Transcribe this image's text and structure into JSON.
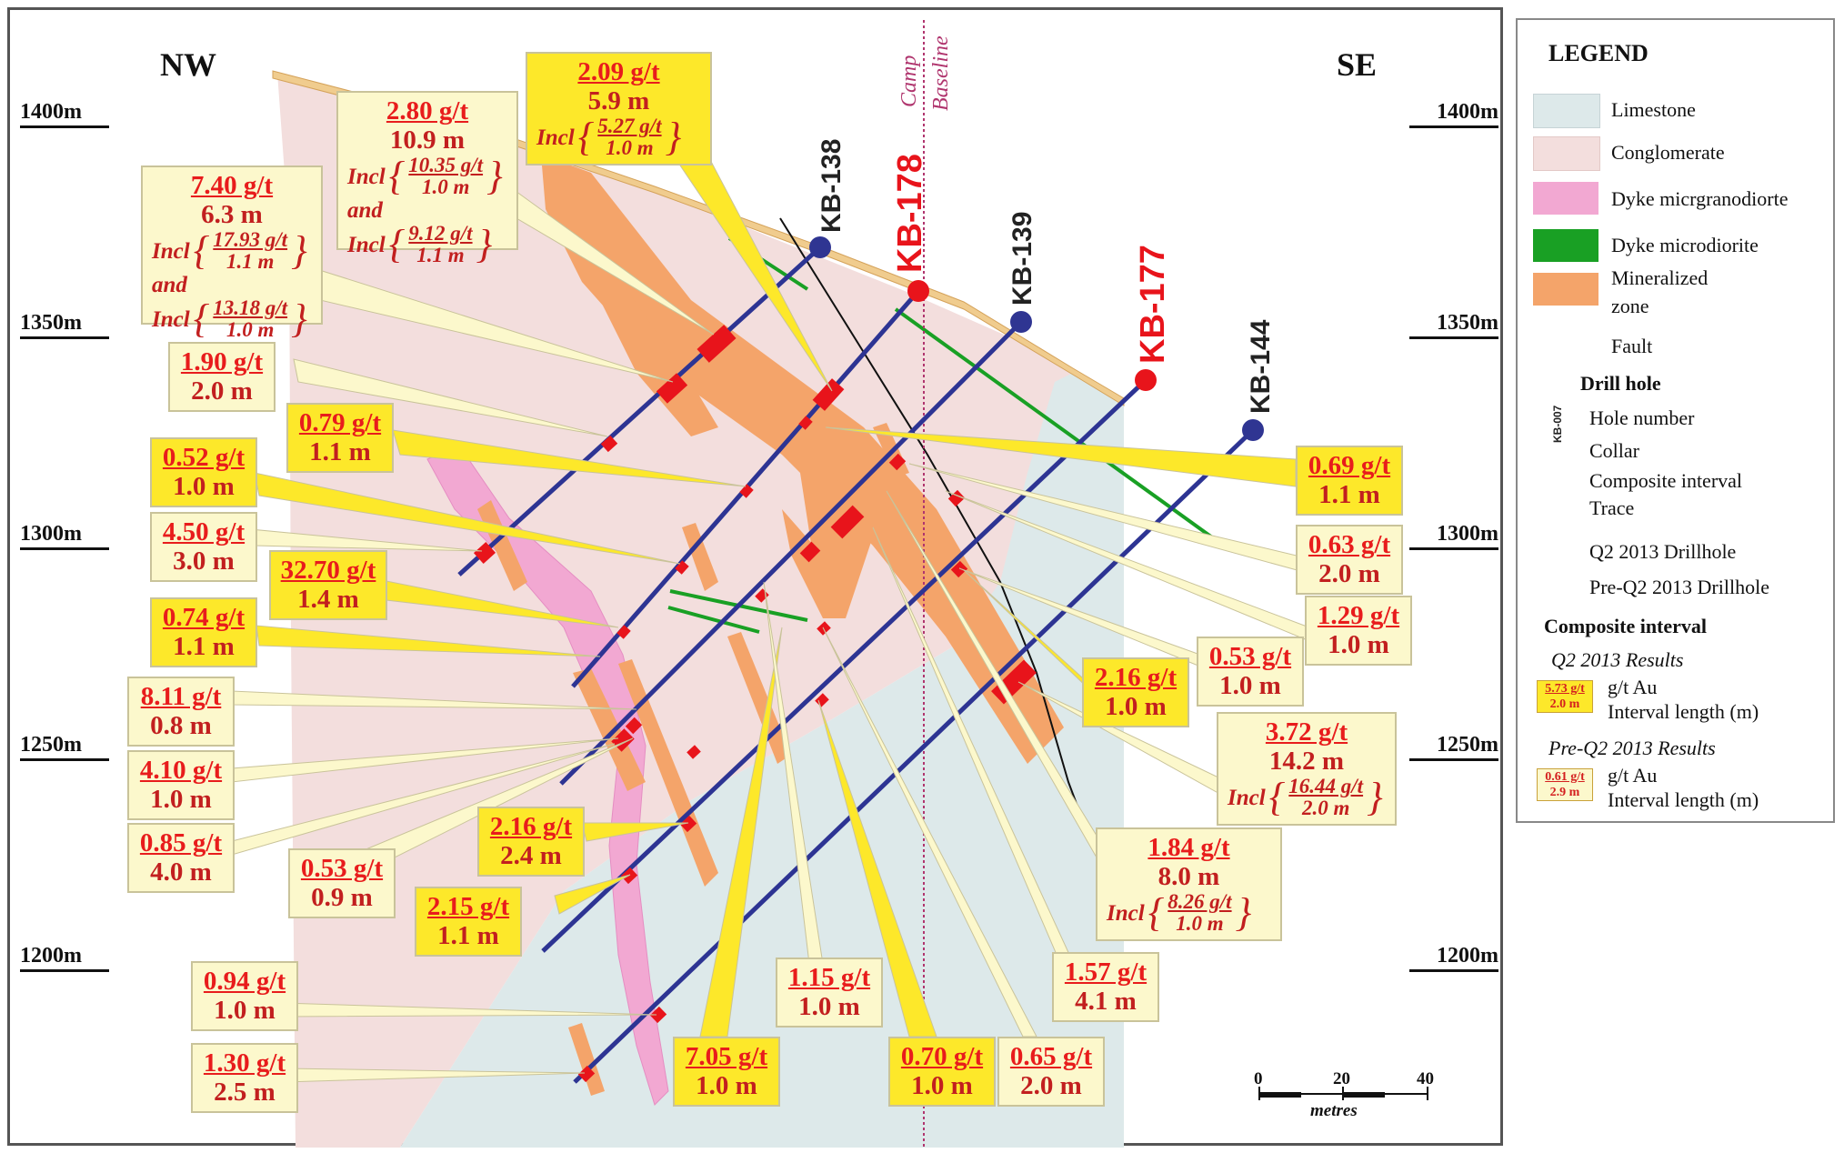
{
  "directions": {
    "left": "NW",
    "right": "SE"
  },
  "elevations": [
    "1400m",
    "1350m",
    "1300m",
    "1250m",
    "1200m"
  ],
  "baseline": {
    "label_top": "Camp",
    "label_bottom": "Baseline"
  },
  "drillholes": [
    {
      "id": "KB-138",
      "type": "pre"
    },
    {
      "id": "KB-178",
      "type": "q2"
    },
    {
      "id": "KB-139",
      "type": "pre"
    },
    {
      "id": "KB-177",
      "type": "q2"
    },
    {
      "id": "KB-144",
      "type": "pre"
    }
  ],
  "colors": {
    "limestone": "#dde9ea",
    "conglomerate": "#f3dedd",
    "dyke_microgranodiorite": "#f2a8d2",
    "dyke_microdiorite": "#19a024",
    "mineralized_zone": "#f4a46a",
    "fault": "#111111",
    "trace": "#2d3493",
    "q2_collar": "#e8141b",
    "pre_collar": "#2f3592",
    "interval": "#e8141b",
    "q2_box": "#fde82a",
    "pre_box": "#fcf8cc",
    "baseline": "#b0356e"
  },
  "callouts": {
    "c1": {
      "grade": "2.09 g/t",
      "length": "5.9 m",
      "incl": [
        {
          "word": "Incl",
          "grade": "5.27 g/t",
          "length": "1.0 m"
        }
      ]
    },
    "c2": {
      "grade": "2.80 g/t",
      "length": "10.9 m",
      "incl": [
        {
          "word": "Incl",
          "grade": "10.35 g/t",
          "length": "1.0 m"
        },
        {
          "word": "and",
          "grade": "",
          "length": ""
        },
        {
          "word": "Incl",
          "grade": "9.12 g/t",
          "length": "1.1 m"
        }
      ]
    },
    "c3": {
      "grade": "7.40 g/t",
      "length": "6.3 m",
      "incl": [
        {
          "word": "Incl",
          "grade": "17.93 g/t",
          "length": "1.1 m"
        },
        {
          "word": "and",
          "grade": "",
          "length": ""
        },
        {
          "word": "Incl",
          "grade": "13.18 g/t",
          "length": "1.0 m"
        }
      ]
    },
    "c4": {
      "grade": "1.90 g/t",
      "length": "2.0 m"
    },
    "c5": {
      "grade": "0.79 g/t",
      "length": "1.1 m"
    },
    "c6": {
      "grade": "0.52 g/t",
      "length": "1.0 m"
    },
    "c7": {
      "grade": "4.50 g/t",
      "length": "3.0 m"
    },
    "c8": {
      "grade": "32.70 g/t",
      "length": "1.4 m"
    },
    "c9": {
      "grade": "0.74 g/t",
      "length": "1.1 m"
    },
    "c10": {
      "grade": "8.11 g/t",
      "length": "0.8 m"
    },
    "c11": {
      "grade": "4.10 g/t",
      "length": "1.0 m"
    },
    "c12": {
      "grade": "0.85 g/t",
      "length": "4.0 m"
    },
    "c13": {
      "grade": "0.53 g/t",
      "length": "0.9 m"
    },
    "c14": {
      "grade": "2.16 g/t",
      "length": "2.4 m"
    },
    "c15": {
      "grade": "2.15 g/t",
      "length": "1.1 m"
    },
    "c16": {
      "grade": "0.94 g/t",
      "length": "1.0 m"
    },
    "c17": {
      "grade": "1.30 g/t",
      "length": "2.5 m"
    },
    "c18": {
      "grade": "7.05 g/t",
      "length": "1.0 m"
    },
    "c19": {
      "grade": "1.15 g/t",
      "length": "1.0 m"
    },
    "c20": {
      "grade": "0.70 g/t",
      "length": "1.0 m"
    },
    "c21": {
      "grade": "0.65 g/t",
      "length": "2.0 m"
    },
    "c22": {
      "grade": "1.57 g/t",
      "length": "4.1 m"
    },
    "c23": {
      "grade": "1.84 g/t",
      "length": "8.0 m",
      "incl": [
        {
          "word": "Incl",
          "grade": "8.26 g/t",
          "length": "1.0 m"
        }
      ]
    },
    "c24": {
      "grade": "3.72 g/t",
      "length": "14.2 m",
      "incl": [
        {
          "word": "Incl",
          "grade": "16.44 g/t",
          "length": "2.0 m"
        }
      ]
    },
    "c25": {
      "grade": "2.16 g/t",
      "length": "1.0 m"
    },
    "c26": {
      "grade": "0.53 g/t",
      "length": "1.0 m"
    },
    "c27": {
      "grade": "1.29 g/t",
      "length": "1.0 m"
    },
    "c28": {
      "grade": "0.63 g/t",
      "length": "2.0 m"
    },
    "c29": {
      "grade": "0.69 g/t",
      "length": "1.1 m"
    }
  },
  "scale": {
    "ticks": [
      "0",
      "20",
      "40"
    ],
    "unit": "metres"
  },
  "legend": {
    "title": "LEGEND",
    "units": [
      "Limestone",
      "Conglomerate",
      "Dyke micrgranodiorte",
      "Dyke microdiorite",
      "Mineralized",
      "zone",
      "Fault"
    ],
    "drill_hole_heading": "Drill hole",
    "drill_hole_items": [
      "Hole number",
      "Collar",
      "Composite interval",
      "Trace"
    ],
    "sample_hole": "KB-007",
    "q2_label": "Q2 2013 Drillhole",
    "pre_label": "Pre-Q2 2013 Drillhole",
    "composite_heading": "Composite interval",
    "q2_results": "Q2 2013 Results",
    "pre_results": "Pre-Q2 2013  Results",
    "q2_sample": {
      "grade": "5.73 g/t",
      "length": "2.0 m"
    },
    "pre_sample": {
      "grade": "0.61 g/t",
      "length": "2.9 m"
    },
    "gt_au": "g/t Au",
    "interval_length": "Interval length (m)"
  }
}
